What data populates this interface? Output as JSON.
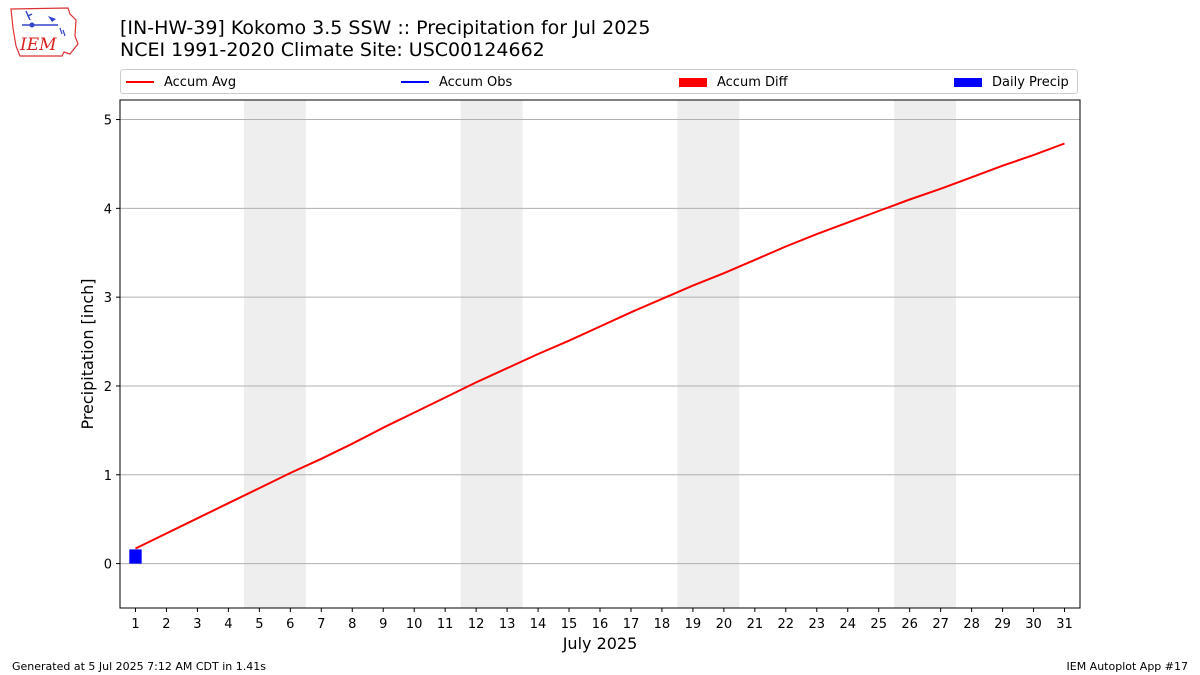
{
  "header": {
    "title": "[IN-HW-39] Kokomo 3.5 SSW :: Precipitation for Jul 2025",
    "subtitle": "NCEI 1991-2020 Climate Site: USC00124662",
    "logo_text": "IEM"
  },
  "footer": {
    "generated": "Generated at 5 Jul 2025 7:12 AM CDT in 1.41s",
    "app": "IEM Autoplot App #17"
  },
  "legend": [
    {
      "label": "Accum Avg",
      "kind": "line",
      "color": "#ff0000"
    },
    {
      "label": "Accum Obs",
      "kind": "line",
      "color": "#0000ff"
    },
    {
      "label": "Accum Diff",
      "kind": "patch",
      "color": "#ff0000"
    },
    {
      "label": "Daily Precip",
      "kind": "patch",
      "color": "#0000ff"
    }
  ],
  "chart_data": {
    "type": "line",
    "xlabel": "July 2025",
    "ylabel": "Precipitation [inch]",
    "xlim": [
      0.5,
      31.5
    ],
    "ylim": [
      -0.5,
      5.22
    ],
    "yticks": [
      0,
      1,
      2,
      3,
      4,
      5
    ],
    "grid": "y",
    "legend_position": "top",
    "weekend_shading": [
      [
        4.5,
        6.5
      ],
      [
        11.5,
        13.5
      ],
      [
        18.5,
        20.5
      ],
      [
        25.5,
        27.5
      ]
    ],
    "x": [
      1,
      2,
      3,
      4,
      5,
      6,
      7,
      8,
      9,
      10,
      11,
      12,
      13,
      14,
      15,
      16,
      17,
      18,
      19,
      20,
      21,
      22,
      23,
      24,
      25,
      26,
      27,
      28,
      29,
      30,
      31
    ],
    "series": [
      {
        "name": "Accum Avg",
        "type": "line",
        "color": "#ff0000",
        "values": [
          0.17,
          0.34,
          0.51,
          0.68,
          0.85,
          1.02,
          1.18,
          1.35,
          1.53,
          1.7,
          1.87,
          2.04,
          2.2,
          2.36,
          2.51,
          2.67,
          2.83,
          2.98,
          3.13,
          3.27,
          3.42,
          3.57,
          3.71,
          3.84,
          3.97,
          4.1,
          4.22,
          4.35,
          4.48,
          4.6,
          4.73
        ]
      },
      {
        "name": "Daily Precip",
        "type": "bar",
        "color": "#0000ff",
        "x": [
          1
        ],
        "values": [
          0.16
        ]
      }
    ]
  }
}
